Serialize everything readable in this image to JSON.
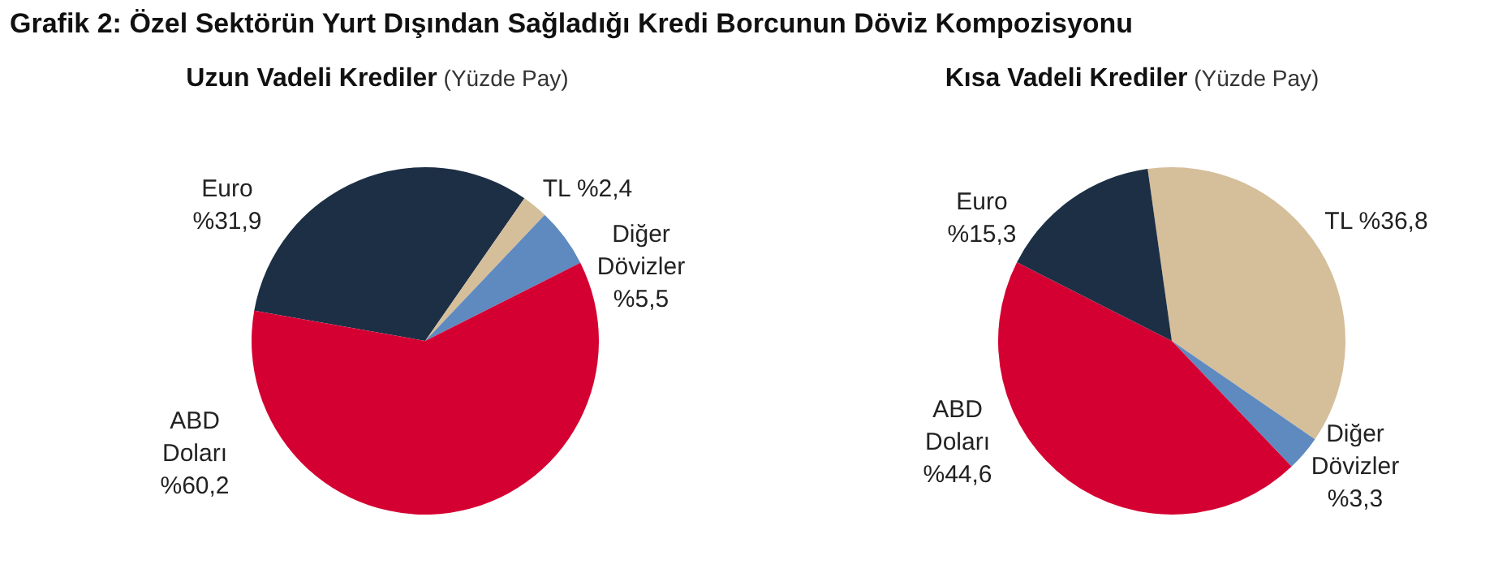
{
  "chart_data": [
    {
      "type": "pie",
      "title": "Uzun Vadeli Krediler",
      "subtitle": "(Yüzde Pay)",
      "annotations": [
        "Grafik 2: Özel Sektörün Yurt Dışından Sağladığı Kredi Borcunun Döviz Kompozisyonu"
      ],
      "categories": [
        "Euro",
        "TL",
        "Diğer Dövizler",
        "ABD Doları"
      ],
      "values": [
        31.9,
        2.4,
        5.5,
        60.2
      ],
      "value_labels": [
        "%31,9",
        "%2,4",
        "%5,5",
        "%60,2"
      ],
      "colors": [
        "#1d2f45",
        "#d5be9a",
        "#5e8ac0",
        "#d50032"
      ],
      "legend": false
    },
    {
      "type": "pie",
      "title": "Kısa Vadeli Krediler",
      "subtitle": "(Yüzde Pay)",
      "categories": [
        "TL",
        "Diğer Dövizler",
        "ABD Doları",
        "Euro"
      ],
      "values": [
        36.8,
        3.3,
        44.6,
        15.3
      ],
      "value_labels": [
        "%36,8",
        "%3,3",
        "%44,6",
        "%15,3"
      ],
      "colors": [
        "#d5be9a",
        "#5e8ac0",
        "#d50032",
        "#1d2f45"
      ],
      "legend": false
    }
  ]
}
